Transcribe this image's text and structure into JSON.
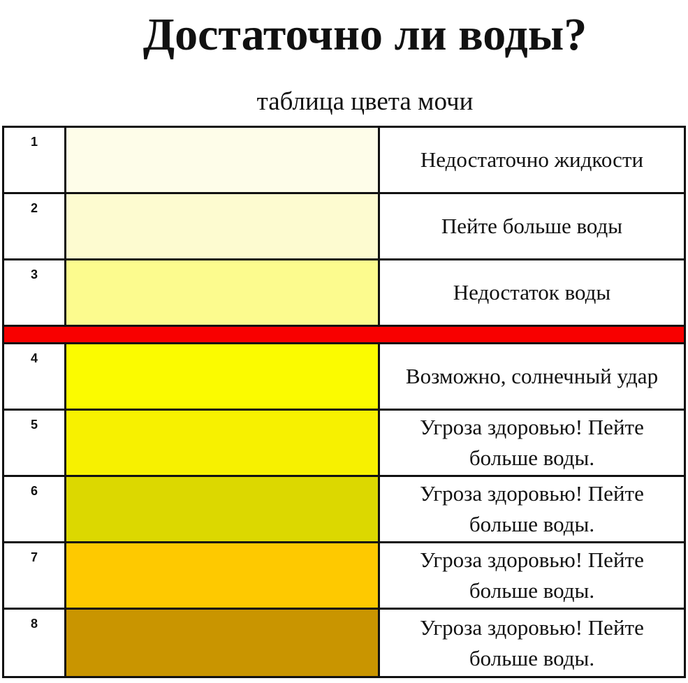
{
  "title": "Достаточно ли воды?",
  "subtitle": "таблица цвета мочи",
  "divider_color": "#f80000",
  "rows": [
    {
      "number": "1",
      "color": "#fefde9",
      "text": "Недостаточно жидкости"
    },
    {
      "number": "2",
      "color": "#fdfbd0",
      "text": "Пейте больше воды"
    },
    {
      "number": "3",
      "color": "#fcfb8e",
      "text": "Недостаток воды"
    },
    {
      "number": "4",
      "color": "#fbfb00",
      "text": "Возможно, солнечный удар"
    },
    {
      "number": "5",
      "color": "#f7f100",
      "text": "Угроза здоровью! Пейте больше воды."
    },
    {
      "number": "6",
      "color": "#dcd800",
      "text": "Угроза здоровью! Пейте больше воды."
    },
    {
      "number": "7",
      "color": "#fec900",
      "text": "Угроза здоровью! Пейте больше воды."
    },
    {
      "number": "8",
      "color": "#c99500",
      "text": "Угроза здоровью! Пейте больше воды."
    }
  ]
}
